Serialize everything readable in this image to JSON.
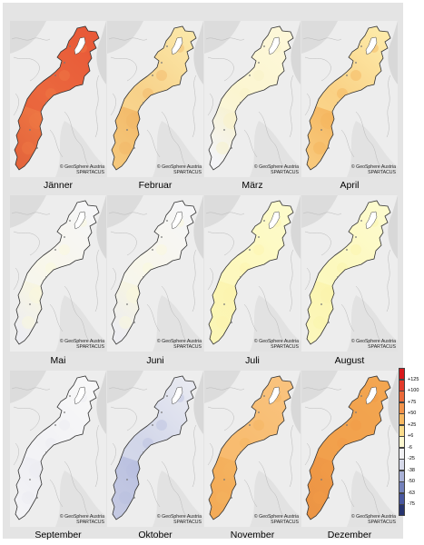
{
  "credit": {
    "org": "© GeoSphere Austria",
    "source": "SPARTACUS"
  },
  "months": [
    {
      "label": "Jänner",
      "north": "#e85a38",
      "south": "#e4653c",
      "tint": "#f07a45"
    },
    {
      "label": "Februar",
      "north": "#fbe7a8",
      "south": "#f5c77a",
      "tint": "#f2b665"
    },
    {
      "label": "März",
      "north": "#fdf7d8",
      "south": "#f4f4f6",
      "tint": "#f9f2c6"
    },
    {
      "label": "April",
      "north": "#fdeaa8",
      "south": "#f8c87a",
      "tint": "#f5b45c"
    },
    {
      "label": "Mai",
      "north": "#f6f6f7",
      "south": "#eeeef2",
      "tint": "#fbf8da"
    },
    {
      "label": "Juni",
      "north": "#f6f6f7",
      "south": "#ededf1",
      "tint": "#fbf8da"
    },
    {
      "label": "Juli",
      "north": "#fdfbcb",
      "south": "#fbf6b6",
      "tint": "#fcf4ae"
    },
    {
      "label": "August",
      "north": "#fdfbcd",
      "south": "#fcf7bb",
      "tint": "#fbf4aa"
    },
    {
      "label": "September",
      "north": "#f7f7f8",
      "south": "#f3f3f6",
      "tint": "#ececf2"
    },
    {
      "label": "Oktober",
      "north": "#e8e9f1",
      "south": "#c4c9e2",
      "tint": "#b7bee0"
    },
    {
      "label": "November",
      "north": "#f9c27d",
      "south": "#f3ab58",
      "tint": "#f5b460"
    },
    {
      "label": "Dezember",
      "north": "#f3a651",
      "south": "#ec9545",
      "tint": "#f19b48"
    }
  ],
  "legend": {
    "labels": [
      "+125",
      "+100",
      "+75",
      "+50",
      "+25",
      "+6",
      "-6",
      "-25",
      "-38",
      "-50",
      "-63",
      "-75"
    ],
    "colors": [
      "#d7191c",
      "#e23b2b",
      "#ec6a3a",
      "#f2924a",
      "#f7b861",
      "#fbdc8b",
      "#fdf8d0",
      "#f2f2f4",
      "#d7daea",
      "#aab2d7",
      "#7481bb",
      "#49579f",
      "#27346f"
    ]
  }
}
